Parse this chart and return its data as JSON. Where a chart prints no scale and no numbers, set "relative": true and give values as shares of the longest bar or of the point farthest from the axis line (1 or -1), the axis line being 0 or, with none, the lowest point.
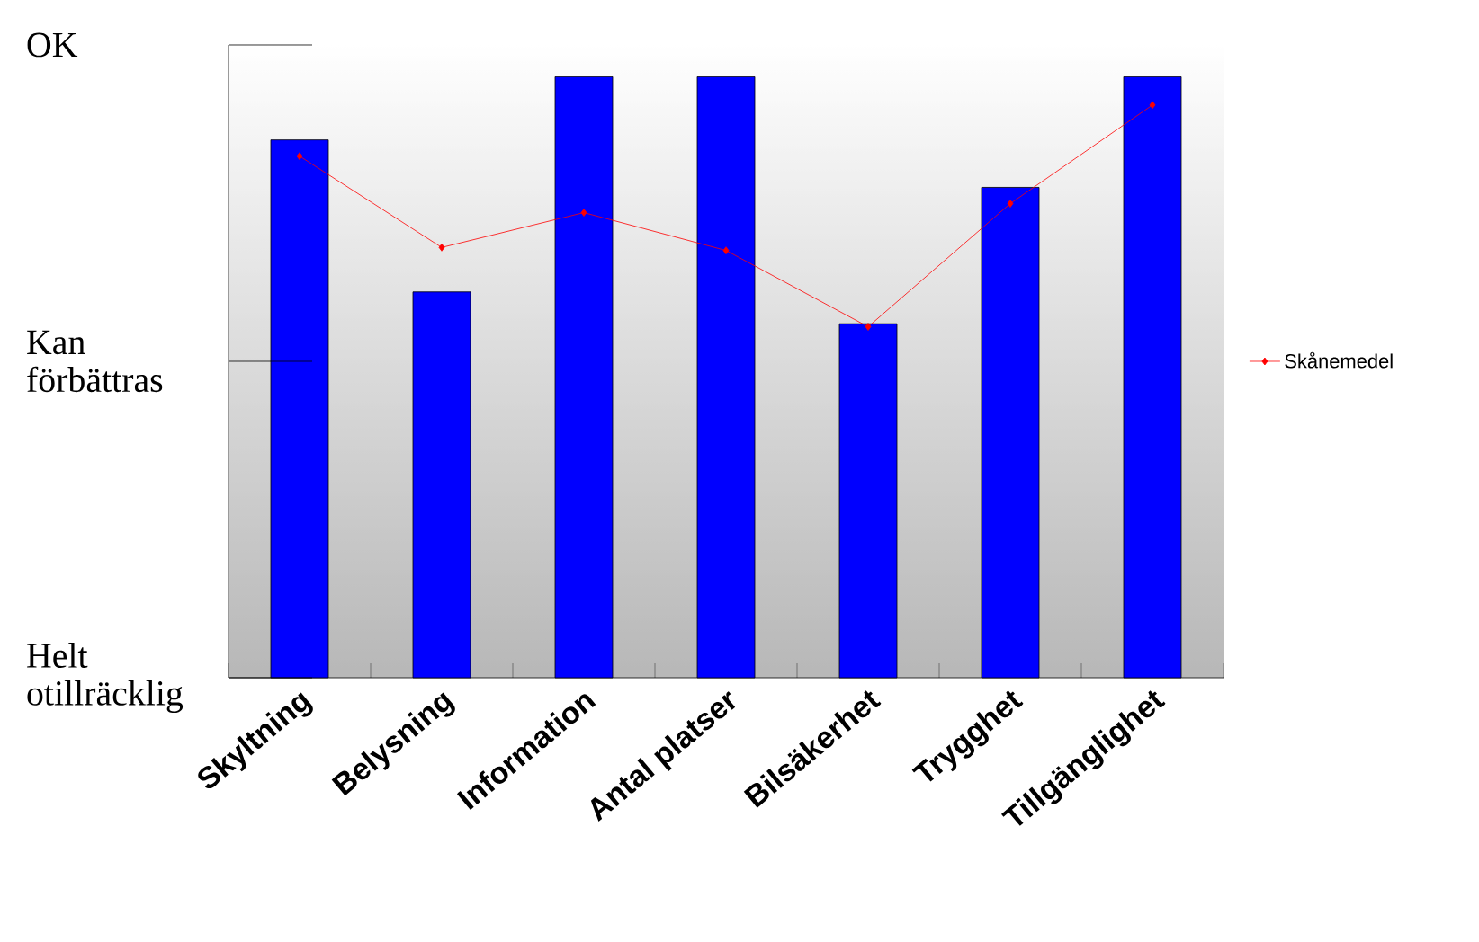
{
  "chart_data": {
    "type": "bar",
    "categories": [
      "Skyltning",
      "Belysning",
      "Information",
      "Antal platser",
      "Bilsäkerhet",
      "Trygghet",
      "Tillgänglighet"
    ],
    "series": [
      {
        "color": "#0000ff",
        "values": [
          0.895,
          0.642,
          1,
          1,
          0.589,
          0.816,
          1
        ]
      },
      {
        "name": "Skånemedel",
        "type": "line",
        "color": "#ff0000",
        "marker": "diamond",
        "values": [
          0.868,
          0.716,
          0.774,
          0.711,
          0.584,
          0.789,
          0.953
        ]
      }
    ],
    "relative": true,
    "annotations": [
      "OK",
      "Kan förbättras",
      "Helt otillräcklig"
    ],
    "legend": "right"
  }
}
